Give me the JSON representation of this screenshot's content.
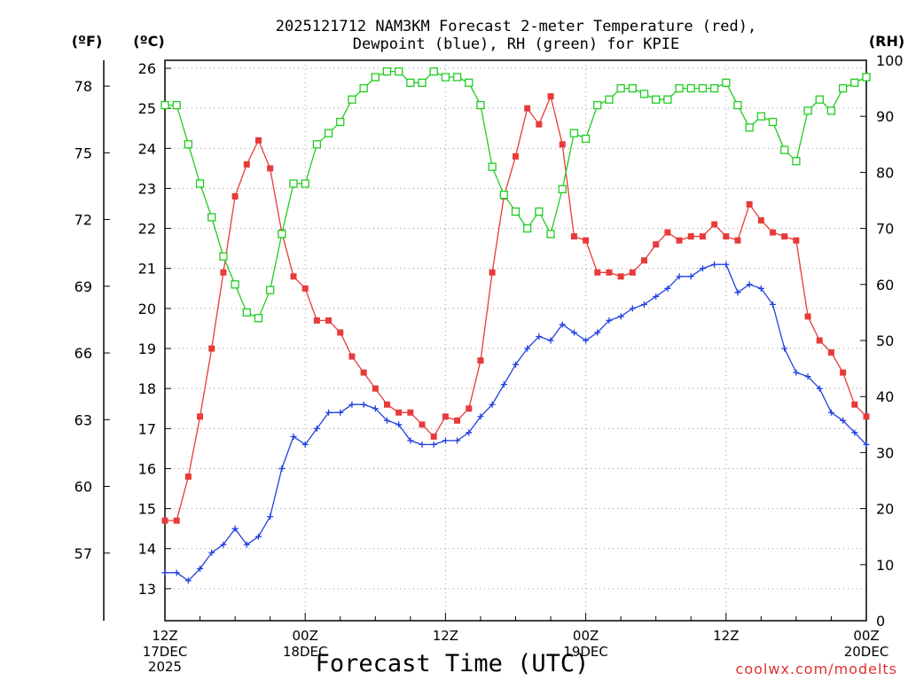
{
  "chart_data": {
    "type": "line",
    "title_line1": "2025121712 NAM3KM Forecast 2-meter Temperature (red),",
    "title_line2": "Dewpoint (blue), RH (green) for KPIE",
    "left_outer_unit": "(ºF)",
    "left_inner_unit": "(ºC)",
    "right_unit": "(RH)",
    "xlabel": "Forecast Time (UTC)",
    "credit": "coolwx.com/modelts",
    "x_range_hours": [
      0,
      60
    ],
    "ylim_c": [
      12.2,
      26.2
    ],
    "ylim_rh": [
      0,
      100
    ],
    "c_ticks": [
      "13",
      "14",
      "15",
      "16",
      "17",
      "18",
      "19",
      "20",
      "21",
      "22",
      "23",
      "24",
      "25",
      "26"
    ],
    "f_ticks": [
      "57",
      "60",
      "63",
      "66",
      "69",
      "72",
      "75",
      "78"
    ],
    "rh_ticks": [
      "0",
      "10",
      "20",
      "30",
      "40",
      "50",
      "60",
      "70",
      "80",
      "90",
      "100"
    ],
    "x_ticks": [
      {
        "hour": 0,
        "line1": "12Z",
        "line2": "17DEC",
        "line3": "2025"
      },
      {
        "hour": 12,
        "line1": "00Z",
        "line2": "18DEC",
        "line3": ""
      },
      {
        "hour": 24,
        "line1": "12Z",
        "line2": "",
        "line3": ""
      },
      {
        "hour": 36,
        "line1": "00Z",
        "line2": "19DEC",
        "line3": ""
      },
      {
        "hour": 48,
        "line1": "12Z",
        "line2": "",
        "line3": ""
      },
      {
        "hour": 60,
        "line1": "00Z",
        "line2": "20DEC",
        "line3": ""
      }
    ],
    "series": [
      {
        "name": "2-meter Temperature",
        "units": "C",
        "color": "#e83a3a",
        "marker": "filled-square",
        "x": [
          0,
          1,
          2,
          3,
          4,
          5,
          6,
          7,
          8,
          9,
          10,
          11,
          12,
          13,
          14,
          15,
          16,
          17,
          18,
          19,
          20,
          21,
          22,
          23,
          24,
          25,
          26,
          27,
          28,
          29,
          30,
          31,
          32,
          33,
          34,
          35,
          36,
          37,
          38,
          39,
          40,
          41,
          42,
          43,
          44,
          45,
          46,
          47,
          48,
          49,
          50,
          51,
          52,
          53,
          54,
          55,
          56,
          57,
          58,
          59,
          60
        ],
        "values": [
          14.7,
          14.7,
          15.8,
          17.3,
          19.0,
          20.9,
          22.8,
          23.6,
          24.2,
          23.5,
          21.9,
          20.8,
          20.5,
          19.7,
          19.7,
          19.4,
          18.8,
          18.4,
          18.0,
          17.6,
          17.4,
          17.4,
          17.1,
          16.8,
          17.3,
          17.2,
          17.5,
          18.7,
          20.9,
          22.8,
          23.8,
          25.0,
          24.6,
          25.3,
          24.1,
          21.8,
          21.7,
          20.9,
          20.9,
          20.8,
          20.9,
          21.2,
          21.6,
          21.9,
          21.7,
          21.8,
          21.8,
          22.1,
          21.8,
          21.7,
          22.6,
          22.2,
          21.9,
          21.8,
          21.7,
          19.8,
          19.2,
          18.9,
          18.4,
          17.6,
          17.3
        ]
      },
      {
        "name": "Dewpoint",
        "units": "C",
        "color": "#2040e0",
        "marker": "plus",
        "x": [
          0,
          1,
          2,
          3,
          4,
          5,
          6,
          7,
          8,
          9,
          10,
          11,
          12,
          13,
          14,
          15,
          16,
          17,
          18,
          19,
          20,
          21,
          22,
          23,
          24,
          25,
          26,
          27,
          28,
          29,
          30,
          31,
          32,
          33,
          34,
          35,
          36,
          37,
          38,
          39,
          40,
          41,
          42,
          43,
          44,
          45,
          46,
          47,
          48,
          49,
          50,
          51,
          52,
          53,
          54,
          55,
          56,
          57,
          58,
          59,
          60
        ],
        "values": [
          13.4,
          13.4,
          13.2,
          13.5,
          13.9,
          14.1,
          14.5,
          14.1,
          14.3,
          14.8,
          16.0,
          16.8,
          16.6,
          17.0,
          17.4,
          17.4,
          17.6,
          17.6,
          17.5,
          17.2,
          17.1,
          16.7,
          16.6,
          16.6,
          16.7,
          16.7,
          16.9,
          17.3,
          17.6,
          18.1,
          18.6,
          19.0,
          19.3,
          19.2,
          19.6,
          19.4,
          19.2,
          19.4,
          19.7,
          19.8,
          20.0,
          20.1,
          20.3,
          20.5,
          20.8,
          20.8,
          21.0,
          21.1,
          21.1,
          20.4,
          20.6,
          20.5,
          20.1,
          19.0,
          18.4,
          18.3,
          18.0,
          17.4,
          17.2,
          16.9,
          16.6
        ]
      },
      {
        "name": "RH",
        "units": "%",
        "color": "#20cc20",
        "marker": "open-square",
        "x": [
          0,
          1,
          2,
          3,
          4,
          5,
          6,
          7,
          8,
          9,
          10,
          11,
          12,
          13,
          14,
          15,
          16,
          17,
          18,
          19,
          20,
          21,
          22,
          23,
          24,
          25,
          26,
          27,
          28,
          29,
          30,
          31,
          32,
          33,
          34,
          35,
          36,
          37,
          38,
          39,
          40,
          41,
          42,
          43,
          44,
          45,
          46,
          47,
          48,
          49,
          50,
          51,
          52,
          53,
          54,
          55,
          56,
          57,
          58,
          59,
          60
        ],
        "values": [
          92,
          92,
          85,
          78,
          72,
          65,
          60,
          55,
          54,
          59,
          69,
          78,
          78,
          85,
          87,
          89,
          93,
          95,
          97,
          98,
          98,
          96,
          96,
          98,
          97,
          97,
          96,
          92,
          81,
          76,
          73,
          70,
          73,
          69,
          77,
          87,
          86,
          92,
          93,
          95,
          95,
          94,
          93,
          93,
          95,
          95,
          95,
          95,
          96,
          92,
          88,
          90,
          89,
          84,
          82,
          91,
          93,
          91,
          95,
          96,
          97
        ]
      }
    ]
  }
}
